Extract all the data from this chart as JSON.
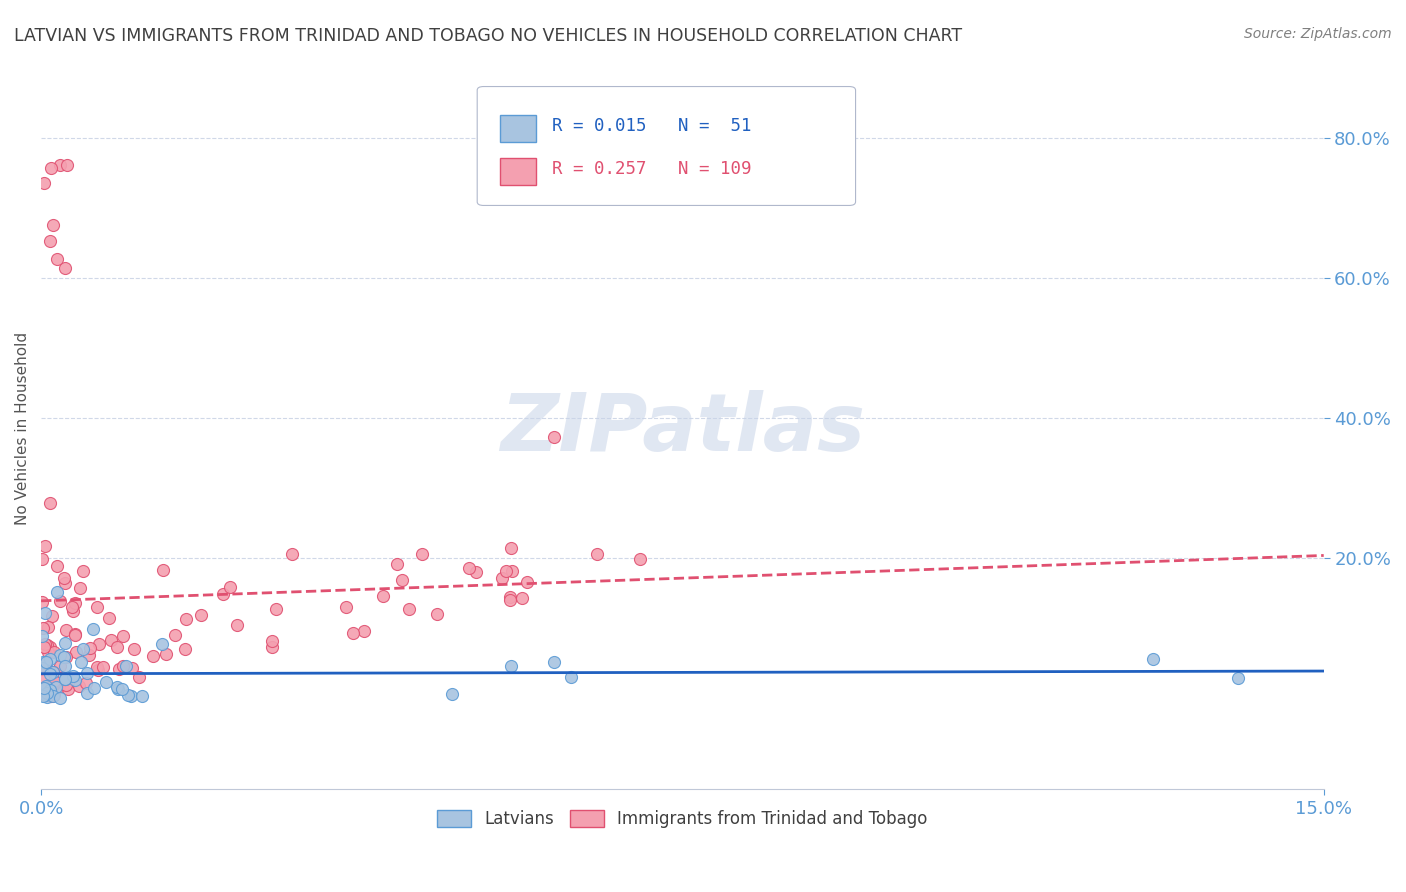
{
  "title": "LATVIAN VS IMMIGRANTS FROM TRINIDAD AND TOBAGO NO VEHICLES IN HOUSEHOLD CORRELATION CHART",
  "source": "Source: ZipAtlas.com",
  "ylabel_label": "No Vehicles in Household",
  "legend_r_n": [
    {
      "R": "0.015",
      "N": "51",
      "color": "#5b9bd5"
    },
    {
      "R": "0.257",
      "N": "109",
      "color": "#e05070"
    }
  ],
  "background_color": "#ffffff",
  "watermark_text": "ZIPatlas",
  "xlim": [
    0.0,
    0.15
  ],
  "ylim": [
    -0.13,
    0.9
  ],
  "dot_size": 75,
  "latvian_color": "#a8c4e0",
  "latvian_edge_color": "#5b9bd5",
  "trinidad_color": "#f4a0b0",
  "trinidad_edge_color": "#e05070",
  "trend_latvian_color": "#2060c0",
  "trend_trinidad_color": "#e05070",
  "grid_color": "#d0d8e8",
  "tick_color": "#5b9bd5",
  "title_color": "#404040",
  "source_color": "#808080"
}
